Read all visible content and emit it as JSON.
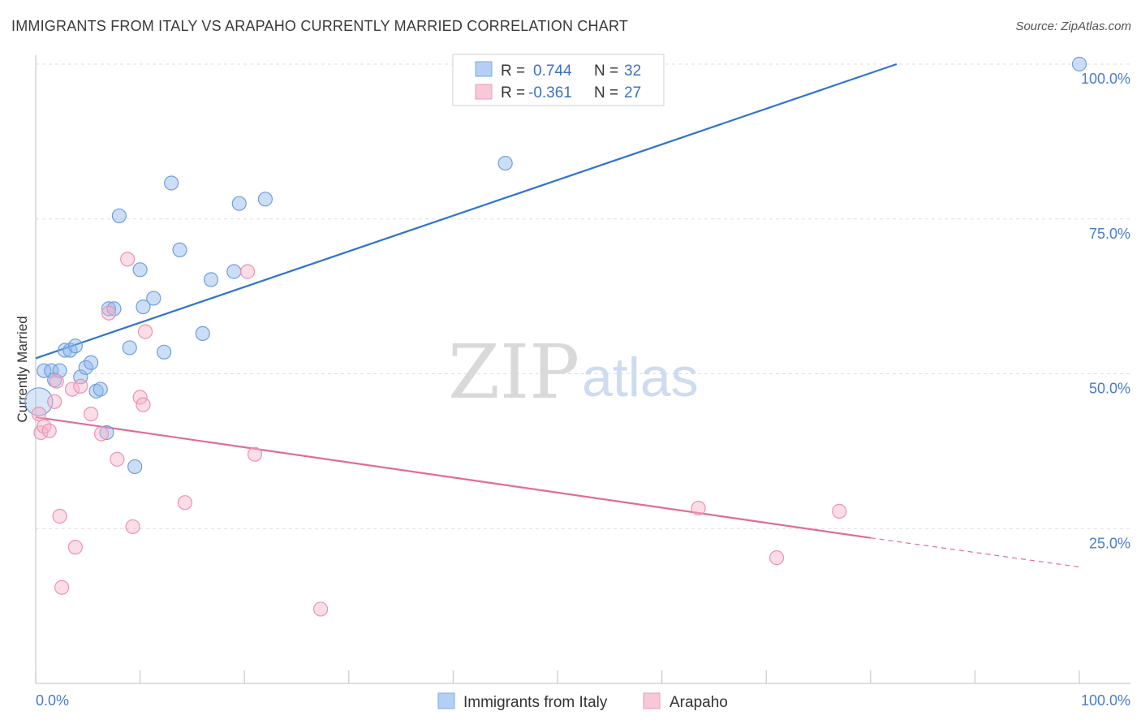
{
  "header": {
    "title": "IMMIGRANTS FROM ITALY VS ARAPAHO CURRENTLY MARRIED CORRELATION CHART",
    "source": "Source: ZipAtlas.com"
  },
  "watermark": {
    "zip": "ZIP",
    "atlas": "atlas"
  },
  "chart_data": {
    "type": "scatter",
    "title": "IMMIGRANTS FROM ITALY VS ARAPAHO CURRENTLY MARRIED CORRELATION CHART",
    "xlabel": "",
    "ylabel": "Currently Married",
    "xlim": [
      0,
      100
    ],
    "ylim": [
      0,
      103
    ],
    "x_tick_labels": [
      "0.0%",
      "100.0%"
    ],
    "y_ticks": [
      25,
      50,
      75,
      100
    ],
    "y_tick_labels": [
      "25.0%",
      "50.0%",
      "75.0%",
      "100.0%"
    ],
    "grid": true,
    "legend": {
      "placement": "top-center",
      "entries": [
        {
          "r_label": "R =",
          "r_value": "0.744",
          "n_label": "N =",
          "n_value": "32"
        },
        {
          "r_label": "R =",
          "r_value": "-0.361",
          "n_label": "N =",
          "n_value": "27"
        }
      ]
    },
    "series": [
      {
        "name": "Immigrants from Italy",
        "color": "#8fb6e8",
        "stroke": "#6f9fdc",
        "line_color": "#2f74d0",
        "trend": {
          "x0": 0,
          "y0": 52.5,
          "x1": 82.5,
          "y1": 100
        },
        "points": [
          [
            0.3,
            45.5
          ],
          [
            0.8,
            50.5
          ],
          [
            1.5,
            50.5
          ],
          [
            1.8,
            49
          ],
          [
            2.3,
            50.5
          ],
          [
            2.8,
            53.8
          ],
          [
            3.3,
            53.8
          ],
          [
            3.8,
            54.5
          ],
          [
            4.3,
            49.5
          ],
          [
            4.8,
            51
          ],
          [
            5.3,
            51.8
          ],
          [
            5.8,
            47.2
          ],
          [
            6.2,
            47.5
          ],
          [
            6.8,
            40.5
          ],
          [
            7.0,
            60.5
          ],
          [
            7.5,
            60.5
          ],
          [
            8.0,
            75.5
          ],
          [
            9.0,
            54.2
          ],
          [
            9.5,
            35
          ],
          [
            10.0,
            66.8
          ],
          [
            10.3,
            60.8
          ],
          [
            11.3,
            62.2
          ],
          [
            12.3,
            53.5
          ],
          [
            13.0,
            80.8
          ],
          [
            13.8,
            70
          ],
          [
            16.0,
            56.5
          ],
          [
            16.8,
            65.2
          ],
          [
            19.0,
            66.5
          ],
          [
            19.5,
            77.5
          ],
          [
            22.0,
            78.2
          ],
          [
            45.0,
            84
          ],
          [
            100,
            100
          ]
        ]
      },
      {
        "name": "Arapaho",
        "color": "#f5b4c8",
        "stroke": "#ec93af",
        "line_color": "#e26b96",
        "trend": {
          "x0": 0,
          "y0": 43,
          "x1": 80,
          "y1": 23.5,
          "dash_to_x": 100,
          "dash_to_y": 18.8
        },
        "points": [
          [
            0.3,
            43.5
          ],
          [
            0.5,
            40.5
          ],
          [
            0.8,
            41.5
          ],
          [
            1.3,
            40.8
          ],
          [
            1.8,
            45.5
          ],
          [
            2.0,
            48.8
          ],
          [
            2.3,
            27
          ],
          [
            2.5,
            15.5
          ],
          [
            3.5,
            47.5
          ],
          [
            3.8,
            22
          ],
          [
            4.3,
            48
          ],
          [
            5.3,
            43.5
          ],
          [
            6.3,
            40.3
          ],
          [
            7.0,
            59.8
          ],
          [
            7.8,
            36.2
          ],
          [
            8.8,
            68.5
          ],
          [
            9.3,
            25.3
          ],
          [
            10.0,
            46.2
          ],
          [
            10.3,
            45
          ],
          [
            10.5,
            56.8
          ],
          [
            14.3,
            29.2
          ],
          [
            20.3,
            66.5
          ],
          [
            21.0,
            37
          ],
          [
            27.3,
            12
          ],
          [
            63.5,
            28.3
          ],
          [
            71.0,
            20.3
          ],
          [
            77.0,
            27.8
          ]
        ]
      }
    ]
  }
}
